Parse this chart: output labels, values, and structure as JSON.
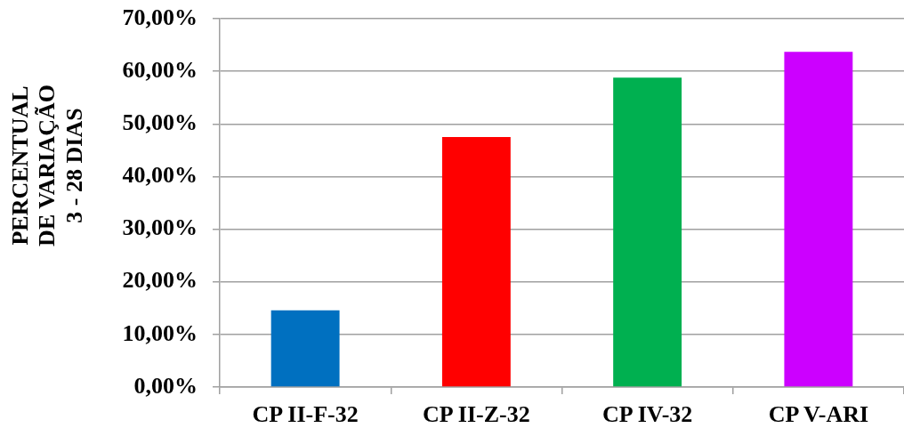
{
  "chart_data": {
    "type": "bar",
    "ylabel": "PERCENTUAL\nDE VARIAÇÃO\n3 - 28 DIAS",
    "categories": [
      "CP II-F-32",
      "CP II-Z-32",
      "CP IV-32",
      "CP V-ARI"
    ],
    "values": [
      14.6,
      47.5,
      58.8,
      63.7
    ],
    "colors": [
      "#0070c0",
      "#ff0000",
      "#00b050",
      "#cc00ff"
    ],
    "ylim": [
      0,
      70
    ],
    "yticks": [
      {
        "value": 0,
        "label": "0,00%"
      },
      {
        "value": 10,
        "label": "10,00%"
      },
      {
        "value": 20,
        "label": "20,00%"
      },
      {
        "value": 30,
        "label": "30,00%"
      },
      {
        "value": 40,
        "label": "40,00%"
      },
      {
        "value": 50,
        "label": "50,00%"
      },
      {
        "value": 60,
        "label": "60,00%"
      },
      {
        "value": 70,
        "label": "70,00%"
      }
    ],
    "grid": "y"
  }
}
